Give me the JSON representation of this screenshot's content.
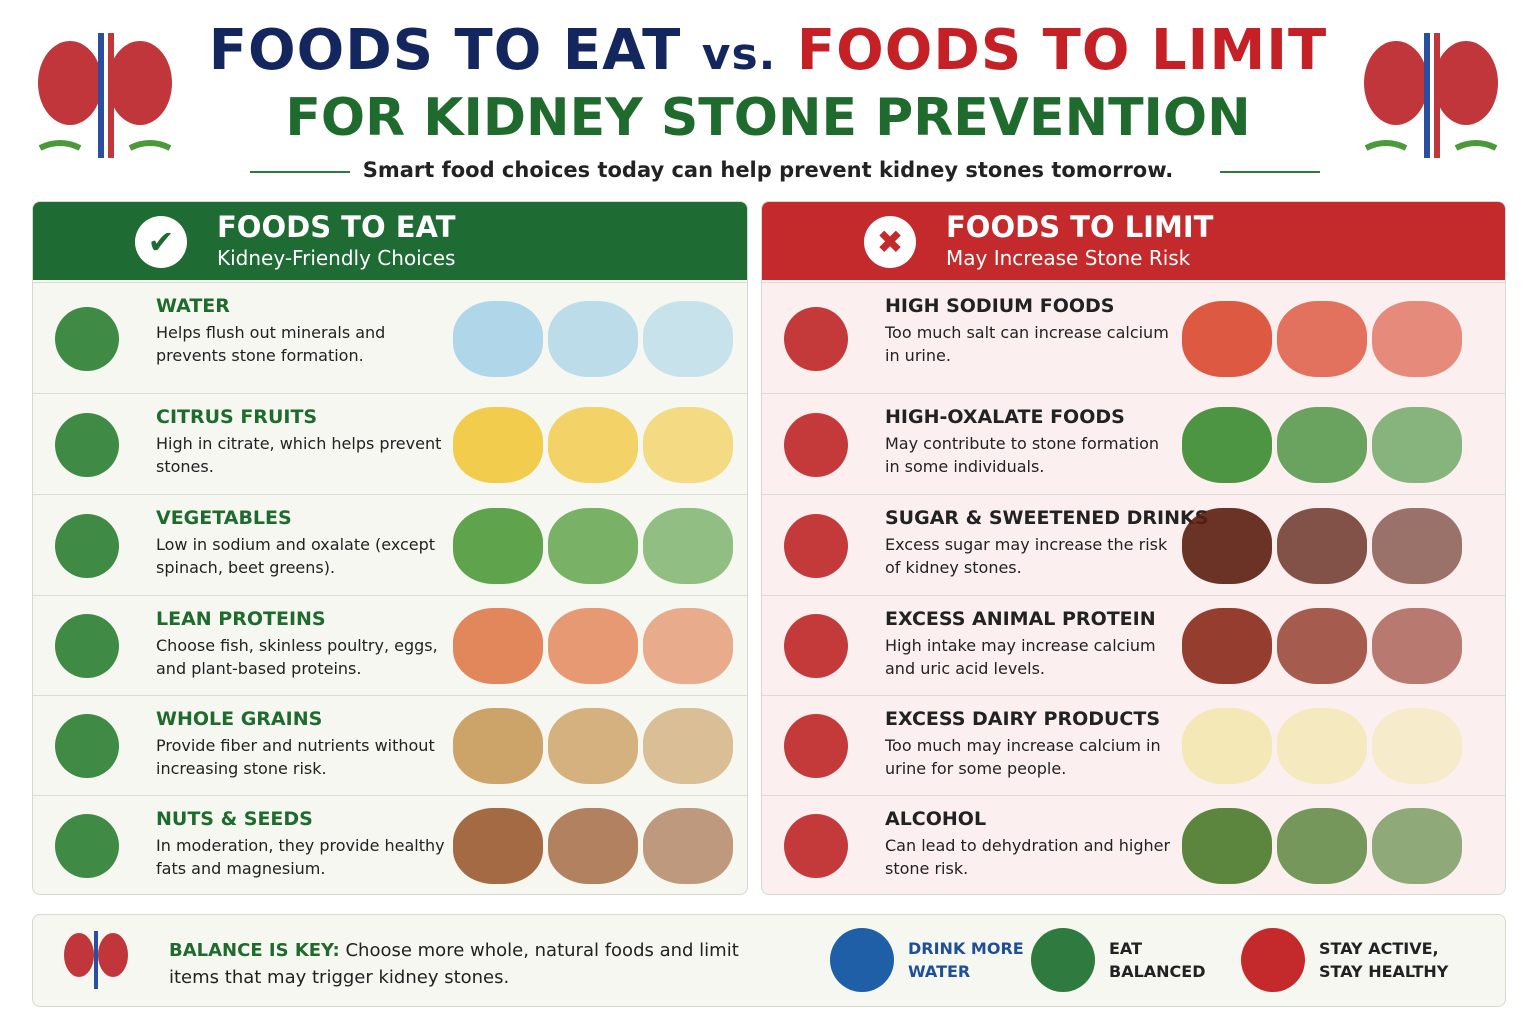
{
  "header": {
    "title_eat": "FOODS TO EAT",
    "title_vs": "vs.",
    "title_limit": "FOODS TO LIMIT",
    "title_line2": "FOR KIDNEY STONE PREVENTION",
    "subtitle": "Smart food choices today can help prevent kidney stones tomorrow."
  },
  "eat": {
    "title": "FOODS TO EAT",
    "subtitle": "Kidney-Friendly Choices",
    "items": [
      {
        "name": "WATER",
        "description": "Helps flush out minerals and prevents stone formation."
      },
      {
        "name": "CITRUS FRUITS",
        "description": "High in citrate, which helps prevent stones."
      },
      {
        "name": "VEGETABLES",
        "description": "Low in sodium and oxalate (except spinach, beet greens)."
      },
      {
        "name": "LEAN PROTEINS",
        "description": "Choose fish, skinless poultry, eggs, and plant-based proteins."
      },
      {
        "name": "WHOLE GRAINS",
        "description": "Provide fiber and nutrients without increasing stone risk."
      },
      {
        "name": "NUTS & SEEDS",
        "description": "In moderation, they provide healthy fats and magnesium."
      }
    ]
  },
  "limit": {
    "title": "FOODS TO LIMIT",
    "subtitle": "May Increase Stone Risk",
    "items": [
      {
        "name": "HIGH SODIUM FOODS",
        "description": "Too much salt can increase calcium in urine."
      },
      {
        "name": "HIGH-OXALATE FOODS",
        "description": "May contribute to stone formation in some individuals."
      },
      {
        "name": "SUGAR & SWEETENED DRINKS",
        "description": "Excess sugar may increase the risk of kidney stones."
      },
      {
        "name": "EXCESS ANIMAL PROTEIN",
        "description": "High intake may increase calcium and uric acid levels."
      },
      {
        "name": "EXCESS DAIRY PRODUCTS",
        "description": "Too much may increase calcium in urine for some people."
      },
      {
        "name": "ALCOHOL",
        "description": "Can lead to dehydration and higher stone risk."
      }
    ]
  },
  "footer": {
    "label": "BALANCE IS KEY:",
    "text": "Choose more whole, natural foods and limit items that may trigger kidney stones.",
    "badges": [
      "DRINK MORE WATER",
      "EAT BALANCED",
      "STAY ACTIVE, STAY HEALTHY"
    ]
  }
}
